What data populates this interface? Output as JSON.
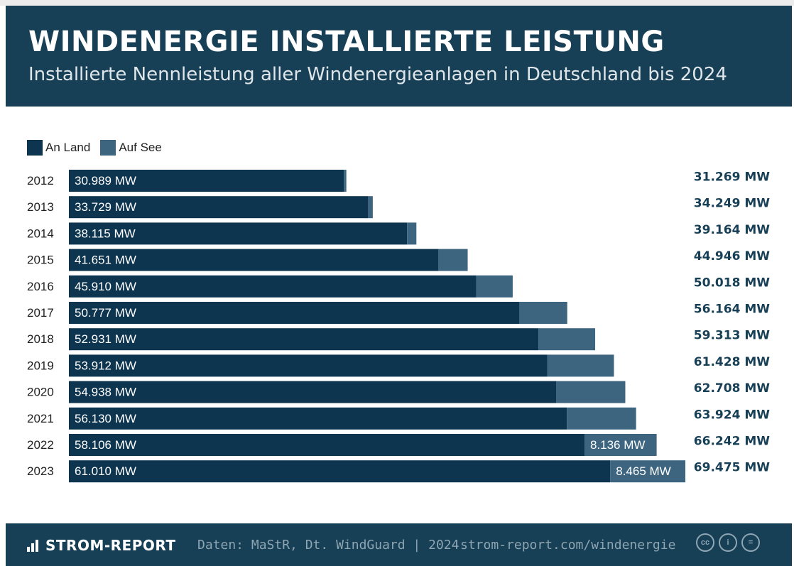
{
  "header": {
    "title": "WINDENERGIE INSTALLIERTE LEISTUNG",
    "subtitle": "Installierte Nennleistung aller Windenergieanlagen in Deutschland bis 2024"
  },
  "legend": [
    {
      "label": "An Land",
      "color": "#0d3550"
    },
    {
      "label": "Auf See",
      "color": "#3d6580"
    }
  ],
  "footer": {
    "brand": "STROM-REPORT",
    "source": "Daten: MaStR, Dt. WindGuard | 2024",
    "url": "strom-report.com/windenergie",
    "licence_icons": [
      "creative-commons-icon",
      "attribution-icon",
      "no-derivatives-icon"
    ],
    "licence_glyphs": [
      "cc",
      "i",
      "="
    ]
  },
  "chart_data": {
    "type": "bar",
    "orientation": "horizontal",
    "stacked": true,
    "categories": [
      "2012",
      "2013",
      "2014",
      "2015",
      "2016",
      "2017",
      "2018",
      "2019",
      "2020",
      "2021",
      "2022",
      "2023"
    ],
    "series": [
      {
        "name": "An Land",
        "color": "#0d3550",
        "values": [
          30989,
          33729,
          38115,
          41651,
          45910,
          50777,
          52931,
          53912,
          54938,
          56130,
          58106,
          61010
        ],
        "labels": [
          "30.989 MW",
          "33.729 MW",
          "38.115 MW",
          "41.651 MW",
          "45.910 MW",
          "50.777 MW",
          "52.931 MW",
          "53.912 MW",
          "54.938 MW",
          "56.130 MW",
          "58.106 MW",
          "61.010 MW"
        ]
      },
      {
        "name": "Auf See",
        "color": "#3d6580",
        "values": [
          280,
          520,
          1049,
          3295,
          4108,
          5387,
          6382,
          7516,
          7770,
          7794,
          8136,
          8465
        ],
        "labels": [
          "",
          "",
          "",
          "",
          "",
          "",
          "",
          "",
          "",
          "",
          "8.136 MW",
          "8.465 MW"
        ]
      }
    ],
    "totals": [
      "31.269 MW",
      "34.249 MW",
      "39.164 MW",
      "44.946 MW",
      "50.018 MW",
      "56.164 MW",
      "59.313 MW",
      "61.428 MW",
      "62.708 MW",
      "63.924 MW",
      "66.242 MW",
      "69.475 MW"
    ],
    "unit": "MW",
    "xlim": [
      0,
      69475
    ]
  }
}
